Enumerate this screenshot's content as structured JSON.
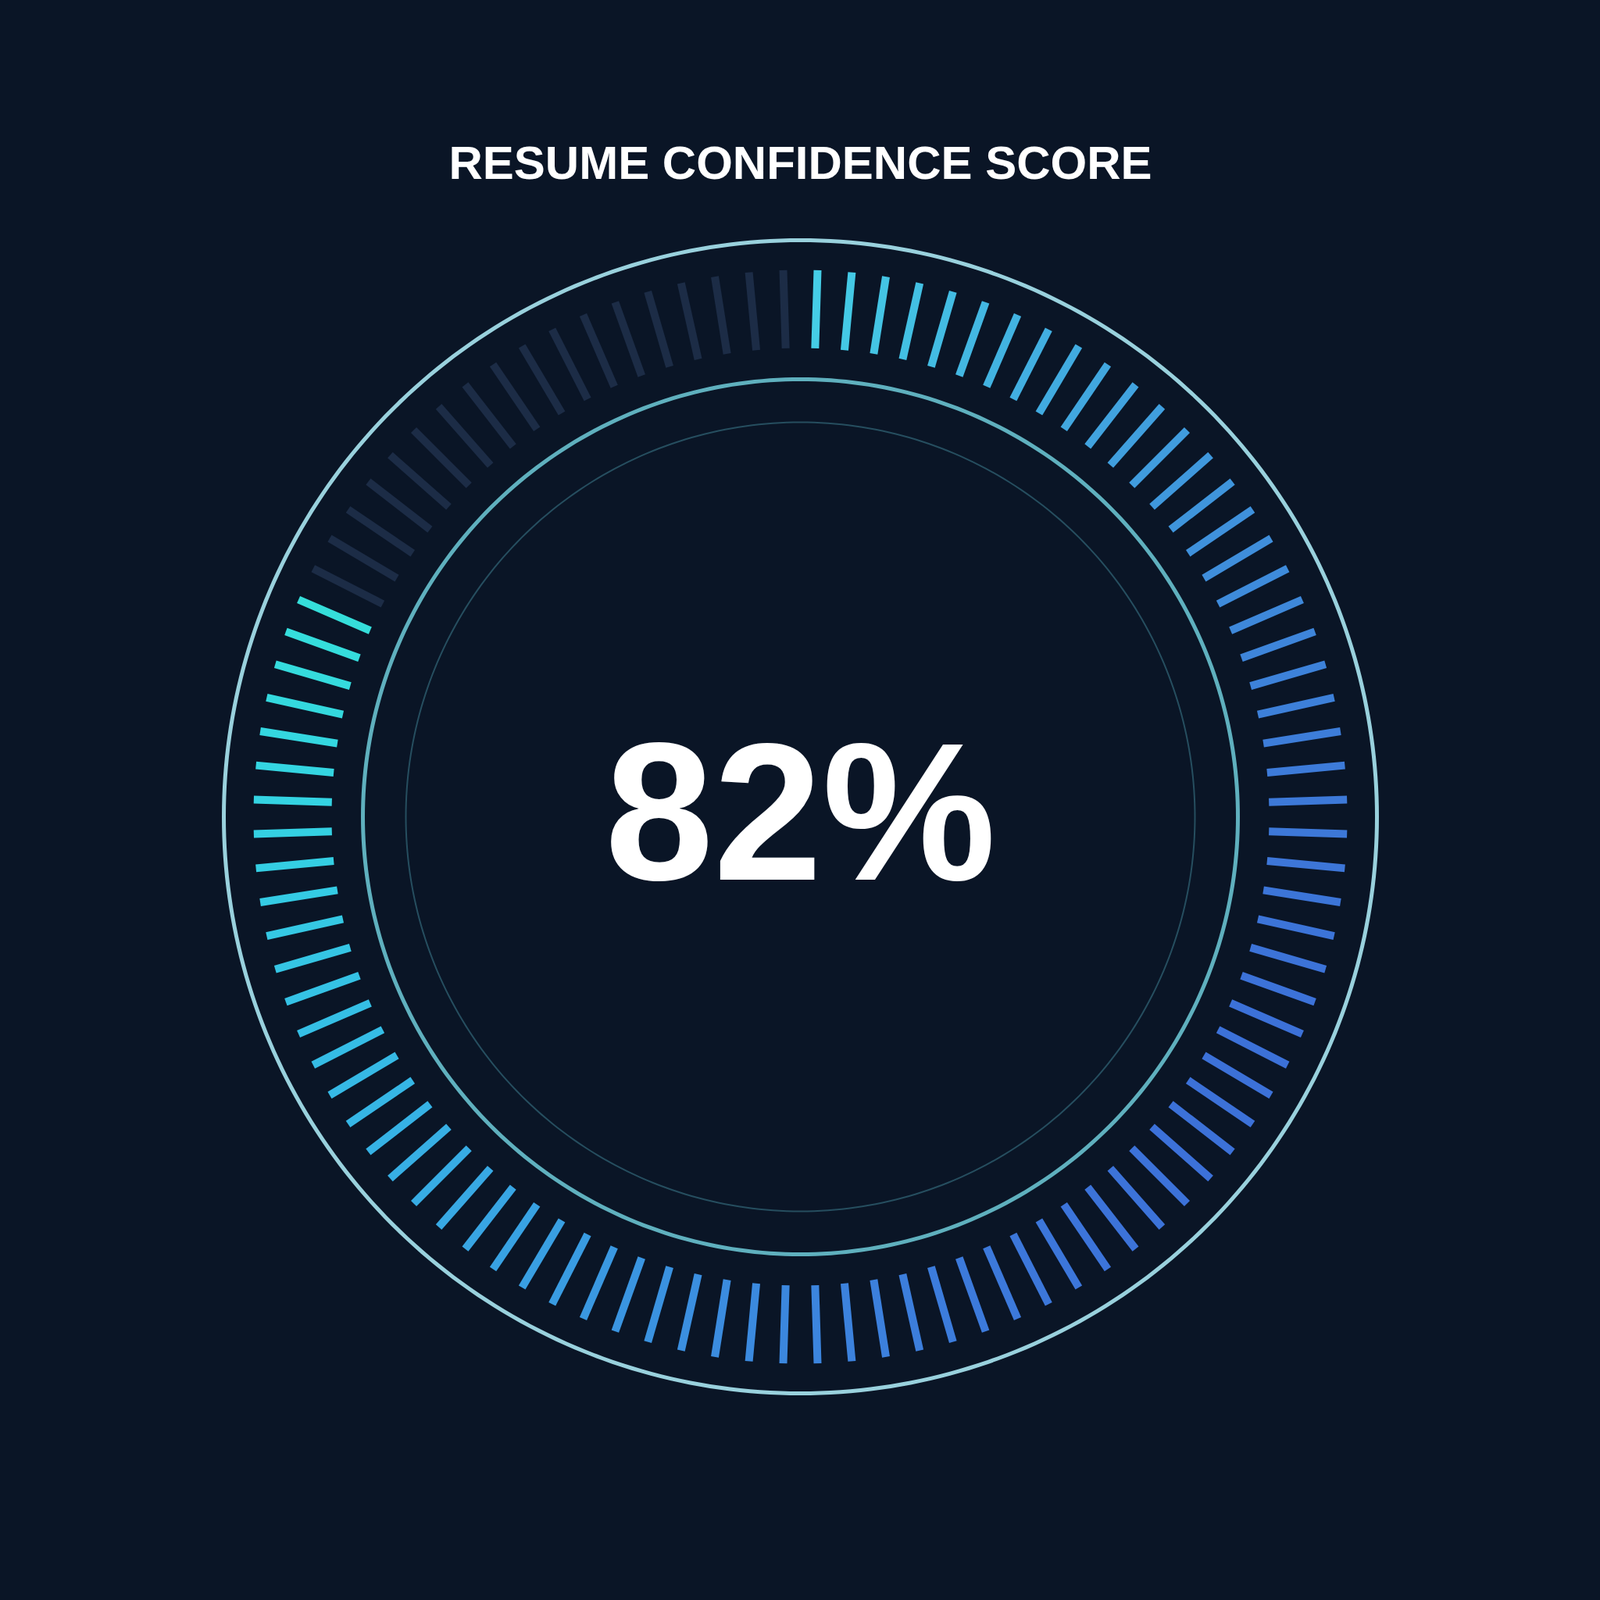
{
  "chart_data": {
    "type": "gauge",
    "title": "RESUME CONFIDENCE SCORE",
    "values": [
      82
    ],
    "value_labels": [
      "82%"
    ],
    "ylim": [
      0,
      100
    ],
    "tick_labels": false,
    "data_labels": true
  }
}
